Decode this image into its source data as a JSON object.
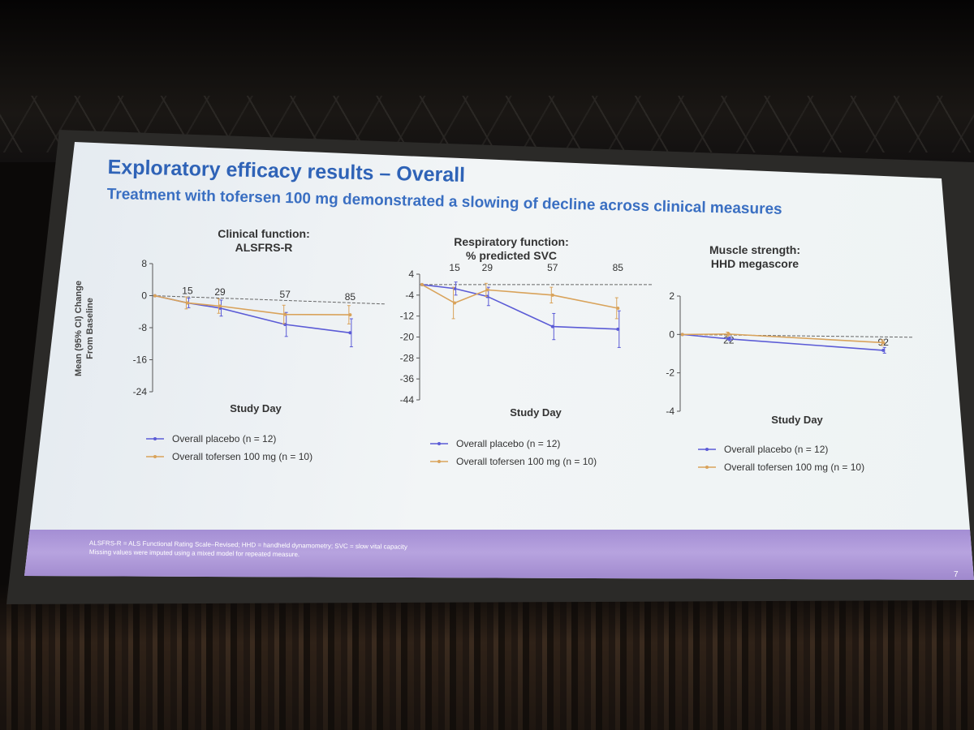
{
  "slide": {
    "title": "Exploratory efficacy results – Overall",
    "subtitle": "Treatment with tofersen 100 mg demonstrated a slowing of decline across clinical measures",
    "footnote_line1": "ALSFRS-R = ALS Functional Rating Scale–Revised; HHD = handheld dynamometry; SVC = slow vital capacity",
    "footnote_line2": "Missing values were imputed using a mixed model for repeated measure.",
    "page_number": "7"
  },
  "colors": {
    "placebo": "#5b5bd6",
    "tofersen": "#d9a35b",
    "axis": "#555555",
    "reference": "#666666"
  },
  "chart_data": [
    {
      "type": "line",
      "title": [
        "Clinical function:",
        "ALSFRS-R"
      ],
      "xlabel": "Study Day",
      "ylabel": [
        "Mean (95% CI) Change",
        "From Baseline"
      ],
      "ylim": [
        -24,
        8
      ],
      "yticks": [
        8,
        0,
        -8,
        -16,
        -24
      ],
      "x": [
        1,
        15,
        29,
        57,
        85
      ],
      "day_labels": [
        15,
        29,
        57,
        85
      ],
      "xlim": [
        0,
        95
      ],
      "series": [
        {
          "name": "Overall placebo (n = 12)",
          "color": "#5b5bd6",
          "values": [
            0,
            -1.5,
            -2.5,
            -6,
            -7.5
          ],
          "err": [
            0,
            1.2,
            2,
            3,
            3.5
          ]
        },
        {
          "name": "Overall tofersen 100 mg (n = 10)",
          "color": "#d9a35b",
          "values": [
            0,
            -1.5,
            -2,
            -3.5,
            -3
          ],
          "err": [
            0,
            1.5,
            1.8,
            2.3,
            2.3
          ]
        }
      ]
    },
    {
      "type": "line",
      "title": [
        "Respiratory function:",
        "% predicted SVC"
      ],
      "xlabel": "Study Day",
      "ylabel": [],
      "ylim": [
        -44,
        4
      ],
      "yticks": [
        4,
        -4,
        -12,
        -20,
        -28,
        -36,
        -44
      ],
      "x": [
        1,
        15,
        29,
        57,
        85
      ],
      "day_labels": [
        15,
        29,
        57,
        85
      ],
      "xlim": [
        0,
        95
      ],
      "series": [
        {
          "name": "Overall placebo (n = 12)",
          "color": "#5b5bd6",
          "values": [
            0,
            -1.5,
            -4.5,
            -16,
            -17
          ],
          "err": [
            0,
            2.5,
            3.5,
            5,
            7
          ]
        },
        {
          "name": "Overall tofersen 100 mg (n = 10)",
          "color": "#d9a35b",
          "values": [
            0,
            -7,
            -2,
            -4,
            -9
          ],
          "err": [
            0,
            6,
            2.5,
            3,
            4
          ]
        }
      ]
    },
    {
      "type": "line",
      "title": [
        "Muscle strength:",
        "HHD megascore"
      ],
      "xlabel": "Study Day",
      "ylabel": [],
      "ylim": [
        -4,
        2
      ],
      "yticks": [
        2,
        0,
        -2,
        -4
      ],
      "x": [
        1,
        22,
        92
      ],
      "day_labels": [
        22,
        92
      ],
      "xlim": [
        0,
        100
      ],
      "series": [
        {
          "name": "Overall placebo (n = 12)",
          "color": "#5b5bd6",
          "values": [
            0,
            -0.2,
            -0.7
          ],
          "err": [
            0,
            0.1,
            0.15
          ]
        },
        {
          "name": "Overall tofersen 100 mg (n = 10)",
          "color": "#d9a35b",
          "values": [
            0,
            0.05,
            -0.3
          ],
          "err": [
            0,
            0.1,
            0.15
          ]
        }
      ]
    }
  ]
}
